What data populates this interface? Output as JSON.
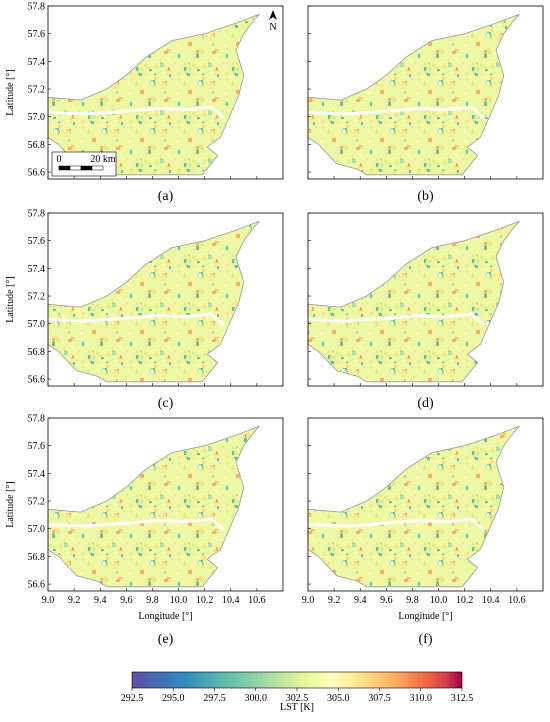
{
  "axes": {
    "xlabel": "Longitude [°]",
    "ylabel": "Latitude [°]",
    "xlim": [
      9.0,
      10.8
    ],
    "ylim": [
      56.55,
      57.8
    ],
    "xticks": [
      {
        "value": 9.0,
        "label": "9.0"
      },
      9.2,
      9.4,
      9.6,
      9.8,
      {
        "value": 10.0,
        "label": "10.0"
      },
      10.2,
      10.4,
      10.6
    ],
    "yticks": [
      56.6,
      56.8,
      {
        "value": 57.0,
        "label": "57.0"
      },
      57.2,
      57.4,
      57.6,
      57.8
    ]
  },
  "panels": [
    {
      "label": "(a)"
    },
    {
      "label": "(b)"
    },
    {
      "label": "(c)"
    },
    {
      "label": "(d)"
    },
    {
      "label": "(e)"
    },
    {
      "label": "(f)"
    }
  ],
  "scale_bar": {
    "start": "0",
    "end": "20 km"
  },
  "north": "N",
  "colorbar": {
    "label": "LST [K]",
    "lim": [
      292.5,
      312.5
    ],
    "ticks": [
      292.5,
      {
        "value": 295.0,
        "label": "295.0"
      },
      297.5,
      {
        "value": 300.0,
        "label": "300.0"
      },
      302.5,
      {
        "value": 305.0,
        "label": "305.0"
      },
      307.5,
      {
        "value": 310.0,
        "label": "310.0"
      },
      312.5
    ]
  }
}
